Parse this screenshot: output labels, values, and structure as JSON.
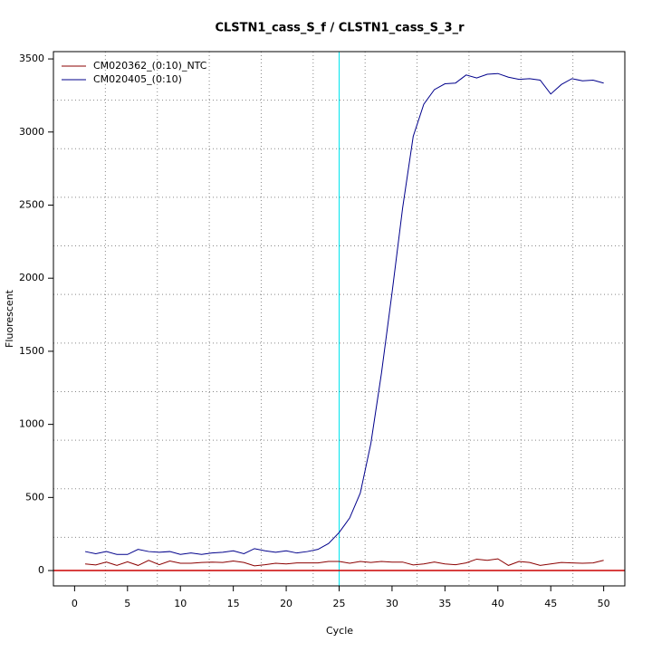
{
  "chart_data": {
    "type": "line",
    "title": "CLSTN1_cass_S_f / CLSTN1_cass_S_3_r",
    "xlabel": "Cycle",
    "ylabel": "Fluorescent",
    "x": [
      1,
      2,
      3,
      4,
      5,
      6,
      7,
      8,
      9,
      10,
      11,
      12,
      13,
      14,
      15,
      16,
      17,
      18,
      19,
      20,
      21,
      22,
      23,
      24,
      25,
      26,
      27,
      28,
      29,
      30,
      31,
      32,
      33,
      34,
      35,
      36,
      37,
      38,
      39,
      40,
      41,
      42,
      43,
      44,
      45,
      46,
      47,
      48,
      49,
      50
    ],
    "series": [
      {
        "name": "CM020362_(0:10)_NTC",
        "color": "#8b0000",
        "values": [
          45,
          38,
          58,
          35,
          60,
          35,
          70,
          40,
          65,
          50,
          50,
          55,
          58,
          55,
          65,
          55,
          32,
          40,
          50,
          45,
          52,
          52,
          52,
          62,
          62,
          50,
          62,
          55,
          62,
          58,
          58,
          38,
          45,
          58,
          45,
          40,
          52,
          78,
          70,
          80,
          35,
          62,
          55,
          35,
          45,
          55,
          52,
          50,
          52,
          70
        ]
      },
      {
        "name": "CM020405_(0:10)",
        "color": "#00008b",
        "values": [
          130,
          115,
          130,
          110,
          110,
          145,
          130,
          125,
          130,
          110,
          120,
          110,
          120,
          125,
          135,
          115,
          150,
          135,
          125,
          135,
          120,
          130,
          145,
          185,
          260,
          360,
          530,
          870,
          1350,
          1900,
          2480,
          2970,
          3190,
          3290,
          3330,
          3335,
          3390,
          3370,
          3395,
          3400,
          3375,
          3360,
          3365,
          3355,
          3260,
          3325,
          3365,
          3350,
          3355,
          3335
        ]
      }
    ],
    "xlim": [
      -2,
      52
    ],
    "ylim": [
      -105,
      3550
    ],
    "xticks": [
      0,
      5,
      10,
      15,
      20,
      25,
      30,
      35,
      40,
      45,
      50
    ],
    "yticks": [
      0,
      500,
      1000,
      1500,
      2000,
      2500,
      3000,
      3500
    ],
    "vline": {
      "value": 25,
      "color": "#00e5ee"
    },
    "hline": {
      "value": 0,
      "color": "#cc0000"
    },
    "grid": true,
    "legend": "top-left"
  }
}
